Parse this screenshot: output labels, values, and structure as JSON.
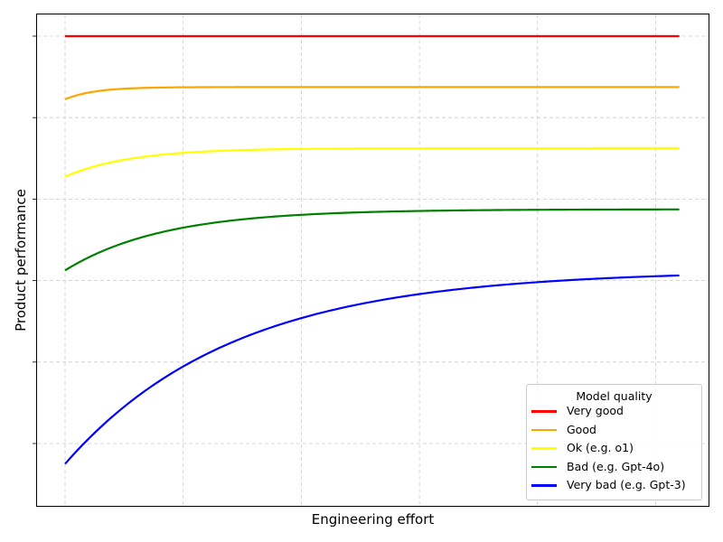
{
  "chart_data": {
    "type": "line",
    "title": "",
    "xlabel": "Engineering effort",
    "ylabel": "Product performance",
    "grid": true,
    "xticks_labeled": false,
    "yticks_labeled": false,
    "legend": {
      "title": "Model quality",
      "position": "lower right",
      "entries": [
        "Very good",
        "Good",
        "Ok (e.g. o1)",
        "Bad (e.g. Gpt-4o)",
        "Very bad (e.g. Gpt-3)"
      ]
    },
    "x_range": [
      0,
      5.2
    ],
    "y_range_pixels_note": "relative performance, higher is better (no tick values shown)",
    "series": [
      {
        "name": "Very good",
        "color": "#ff0000",
        "start": 1.0,
        "plateau": 1.0,
        "rate": 0
      },
      {
        "name": "Good",
        "color": "#ffa500",
        "start": 0.845,
        "plateau": 0.875,
        "rate": 4.0
      },
      {
        "name": "Ok (e.g. o1)",
        "color": "#ffff00",
        "start": 0.655,
        "plateau": 0.725,
        "rate": 1.8
      },
      {
        "name": "Bad (e.g. Gpt-4o)",
        "color": "#008000",
        "start": 0.425,
        "plateau": 0.575,
        "rate": 1.2
      },
      {
        "name": "Very bad (e.g. Gpt-3)",
        "color": "#0000ff",
        "start": -0.05,
        "plateau": 0.425,
        "rate": 0.7
      }
    ]
  }
}
